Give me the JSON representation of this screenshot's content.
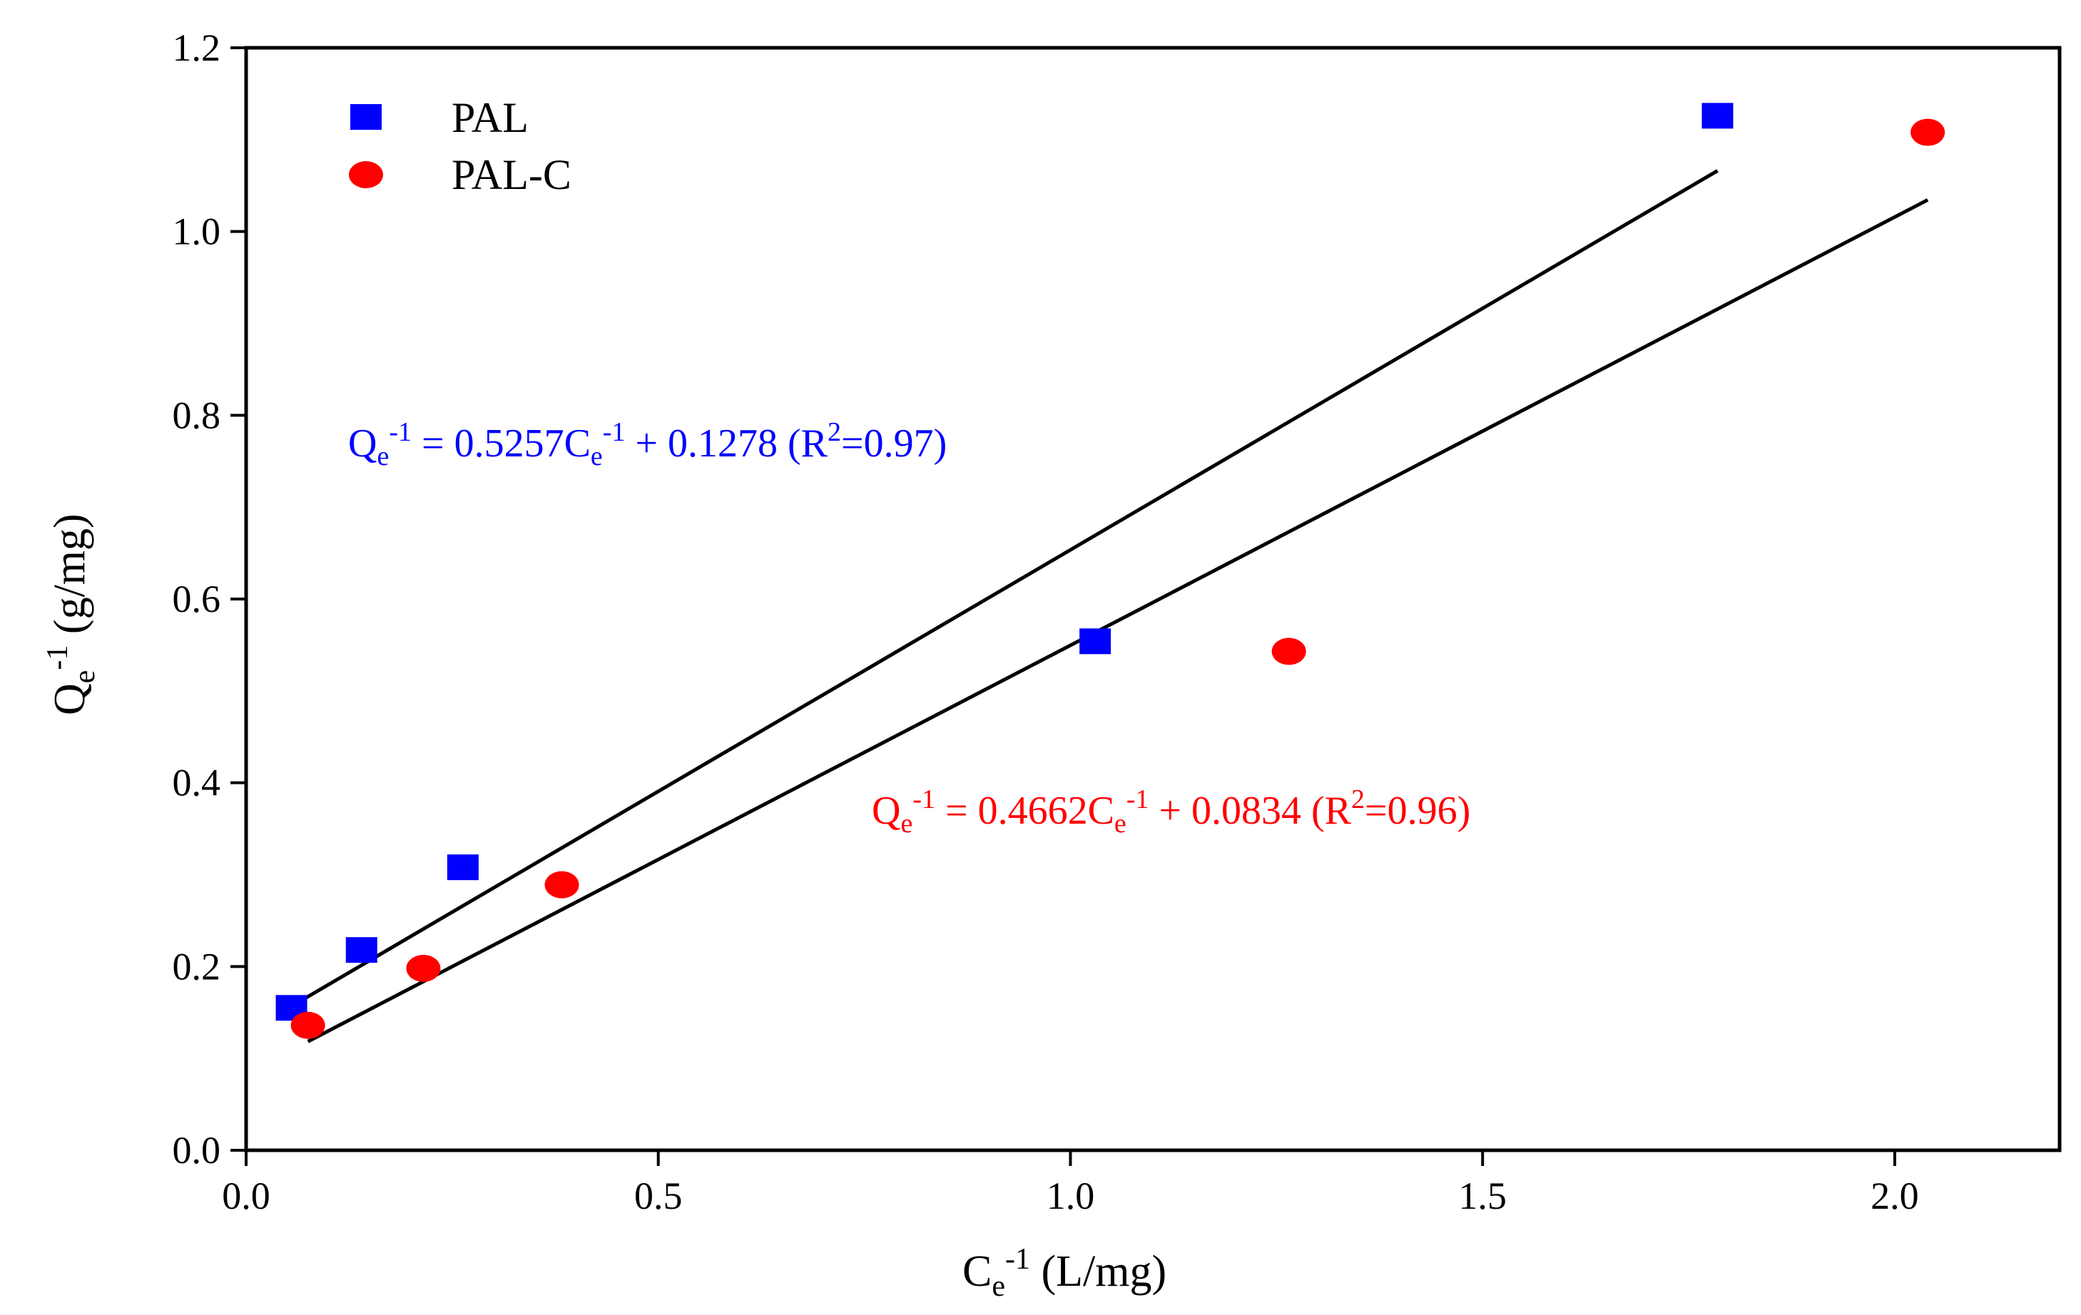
{
  "chart_data": {
    "type": "scatter",
    "title": "",
    "xlabel": {
      "main": "C",
      "sub": "e",
      "sup": "-1",
      "unit": " (L/mg)"
    },
    "ylabel": {
      "main": "Q",
      "sub": "e",
      "sup": "-1",
      "unit": " (g/mg)"
    },
    "xlim": [
      0.0,
      2.2
    ],
    "ylim": [
      0.0,
      1.2
    ],
    "xticks": [
      0.0,
      0.5,
      1.0,
      1.5,
      2.0
    ],
    "xtick_labels": [
      "0.0",
      "0.5",
      "1.0",
      "1.5",
      "2.0"
    ],
    "yticks": [
      0.0,
      0.2,
      0.4,
      0.6,
      0.8,
      1.0,
      1.2
    ],
    "ytick_labels": [
      "0.0",
      "0.2",
      "0.4",
      "0.6",
      "0.8",
      "1.0",
      "1.2"
    ],
    "grid": false,
    "legend_position": "top-left",
    "series": [
      {
        "name": "PAL",
        "marker": "square",
        "color": "#0000ff",
        "x": [
          0.055,
          0.14,
          0.263,
          1.03,
          1.785
        ],
        "y": [
          0.155,
          0.218,
          0.308,
          0.554,
          1.126
        ],
        "fit": {
          "slope": 0.5257,
          "intercept": 0.1278,
          "x_range": [
            0.055,
            1.785
          ]
        },
        "equation": {
          "lhs": "Q",
          "lhs_sub": "e",
          "lhs_sup": "-1",
          "mid": " = 0.5257C",
          "mid_sub": "e",
          "mid_sup": "-1",
          "tail": " + 0.1278 (R",
          "r_sup": "2",
          "end": "=0.97)"
        }
      },
      {
        "name": "PAL-C",
        "marker": "circle",
        "color": "#ff0000",
        "x": [
          0.075,
          0.215,
          0.383,
          1.265,
          2.04
        ],
        "y": [
          0.136,
          0.198,
          0.289,
          0.543,
          1.108
        ],
        "fit": {
          "slope": 0.4662,
          "intercept": 0.0834,
          "x_range": [
            0.075,
            2.04
          ]
        },
        "equation": {
          "lhs": "Q",
          "lhs_sub": "e",
          "lhs_sup": "-1",
          "mid": " = 0.4662C",
          "mid_sub": "e",
          "mid_sup": "-1",
          "tail": " + 0.0834 (R",
          "r_sup": "2",
          "end": "=0.96)"
        }
      }
    ]
  }
}
